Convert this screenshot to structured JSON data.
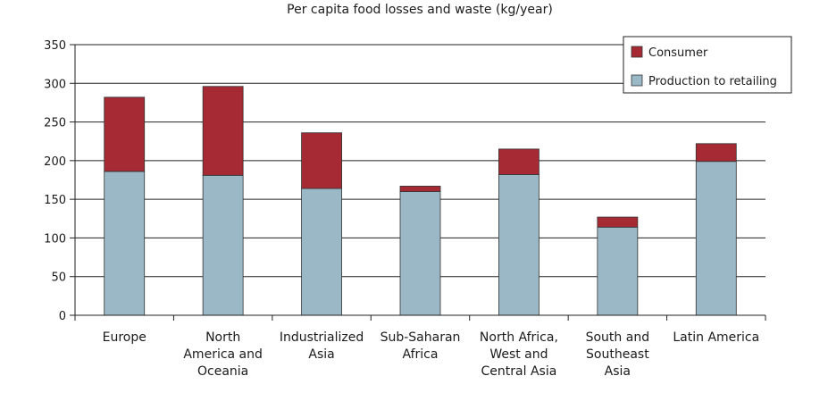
{
  "chart_data": {
    "type": "bar",
    "stacked": true,
    "title": "Per capita food losses and waste (kg/year)",
    "xlabel": "",
    "ylabel": "",
    "ylim": [
      0,
      350
    ],
    "yticks": [
      0,
      50,
      100,
      150,
      200,
      250,
      300,
      350
    ],
    "grid": true,
    "legend_position": "top-right",
    "categories": [
      [
        "Europe"
      ],
      [
        "North",
        "America and",
        "Oceania"
      ],
      [
        "Industrialized",
        "Asia"
      ],
      [
        "Sub-Saharan",
        "Africa"
      ],
      [
        "North Africa,",
        "West and",
        "Central Asia"
      ],
      [
        "South and",
        "Southeast",
        "Asia"
      ],
      [
        "Latin America"
      ]
    ],
    "series": [
      {
        "name": "Production to retailing",
        "color": "#9ab8c6",
        "values": [
          186,
          181,
          164,
          160,
          182,
          114,
          199
        ]
      },
      {
        "name": "Consumer",
        "color": "#a52a33",
        "values": [
          96,
          115,
          72,
          7,
          33,
          13,
          23
        ]
      }
    ],
    "legend_order": [
      "Consumer",
      "Production to retailing"
    ]
  }
}
